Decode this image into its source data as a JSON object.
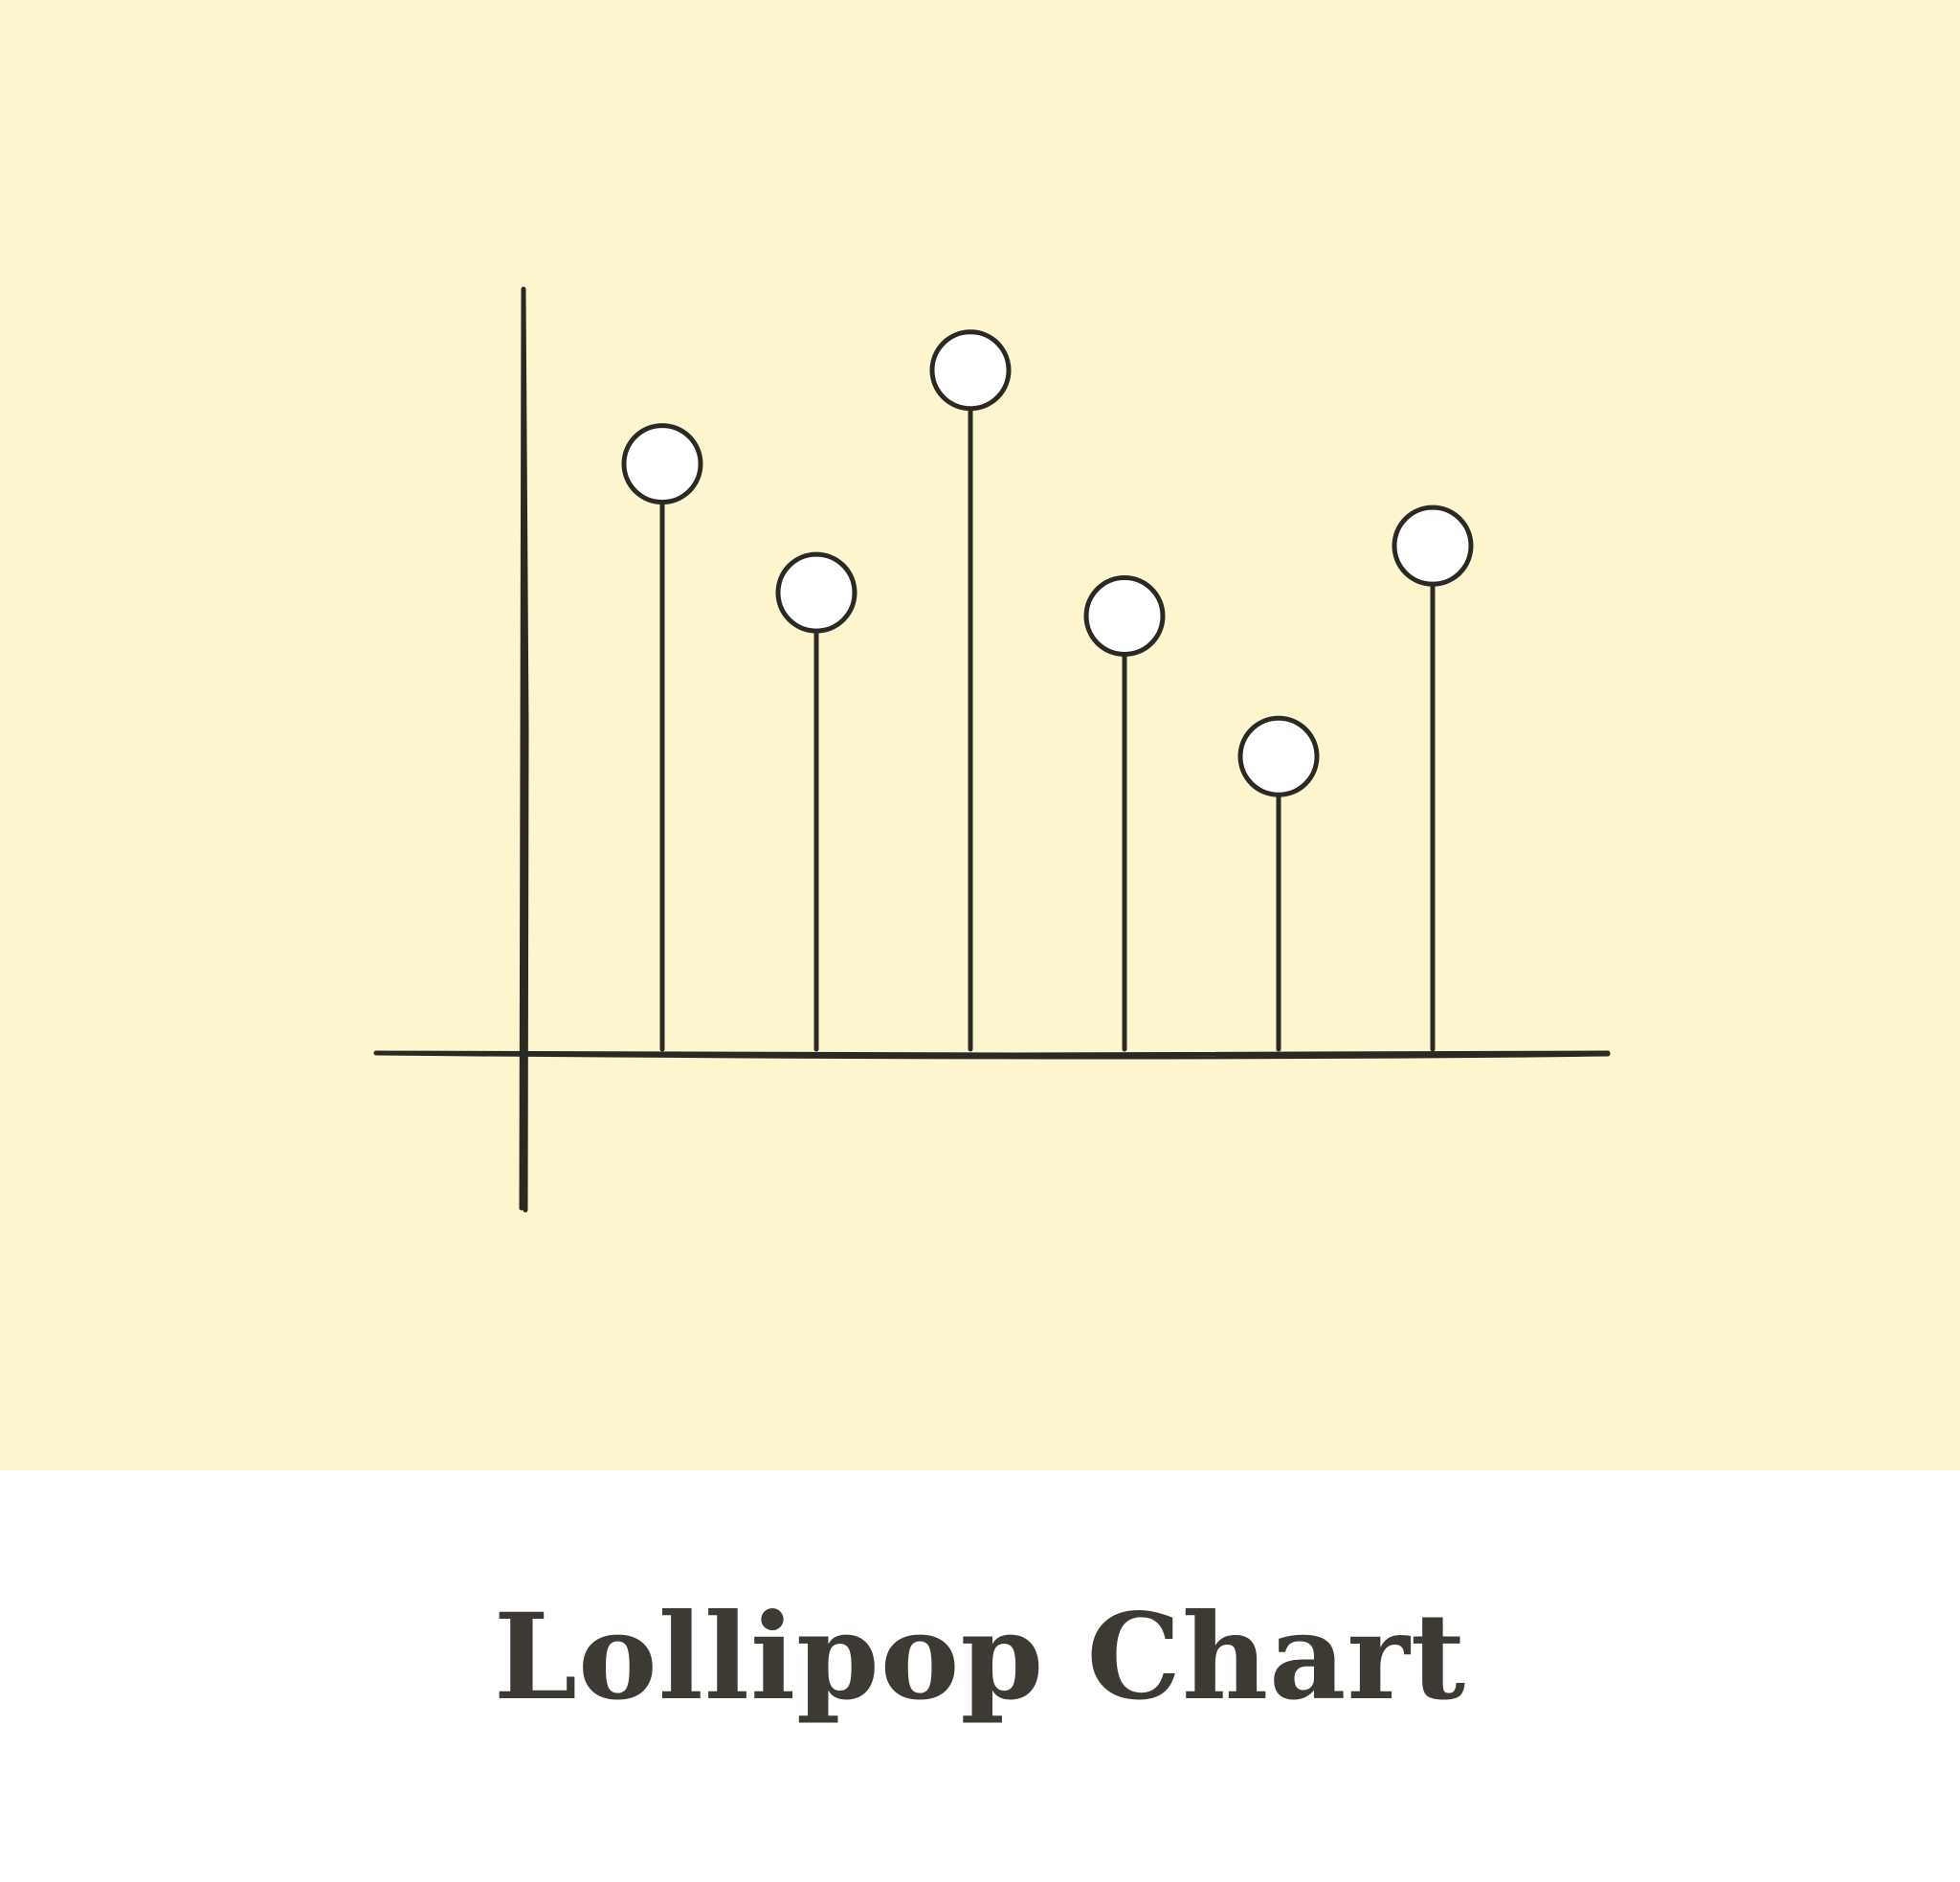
{
  "caption": {
    "title": "Lollipop Chart"
  },
  "colors": {
    "background": "#fdf5cd",
    "ink": "#2b2924",
    "title": "#3d3a34",
    "marker_fill": "#ffffff",
    "page": "#ffffff"
  },
  "chart_data": {
    "type": "lollipop",
    "title": "",
    "xlabel": "",
    "ylabel": "",
    "categories": [
      "",
      "",
      "",
      "",
      "",
      ""
    ],
    "values": [
      5.0,
      3.9,
      5.8,
      3.7,
      2.5,
      4.3
    ],
    "ylim": [
      0,
      7
    ],
    "grid": false,
    "legend": "none",
    "axis_ticks": false
  }
}
